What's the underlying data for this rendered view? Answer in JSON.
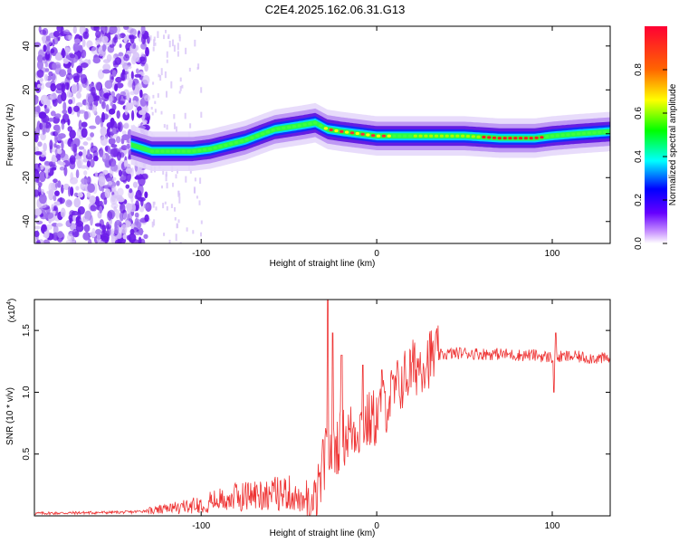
{
  "title": "C2E4.2025.162.06.31.G13",
  "chart_data": [
    {
      "type": "heatmap",
      "xlabel": "Height of straight line (km)",
      "ylabel": "Frequency (Hz)",
      "xlim": [
        -195,
        133
      ],
      "ylim": [
        -50,
        49
      ],
      "xticks": [
        -100,
        0,
        100
      ],
      "yticks": [
        -40,
        -20,
        0,
        20,
        40
      ],
      "colorbar": {
        "label": "Normalized spectral amplitude",
        "range": [
          0,
          1
        ],
        "ticks": [
          0.0,
          0.2,
          0.4,
          0.6,
          0.8
        ],
        "colors": [
          "#ffffff",
          "#cc99ff",
          "#6600ff",
          "#0000ff",
          "#00ffff",
          "#00ff00",
          "#ffff00",
          "#ff6600",
          "#ff0033"
        ]
      },
      "ridge": {
        "x": [
          -140,
          -128,
          -115,
          -105,
          -95,
          -85,
          -75,
          -65,
          -58,
          -50,
          -42,
          -35,
          -28,
          -20,
          -10,
          0,
          10,
          30,
          50,
          70,
          90,
          100,
          115,
          133
        ],
        "y": [
          -5,
          -8,
          -8,
          -8,
          -7,
          -5,
          -3,
          0,
          2,
          3,
          4,
          5,
          2,
          1,
          0,
          -1,
          -1,
          -1,
          -1,
          -2,
          -2,
          -1,
          0,
          1
        ]
      },
      "noise_until_x": -130
    },
    {
      "type": "line",
      "xlabel": "Height of straight line (km)",
      "ylabel": "SNR (10 * v/v)",
      "yscale_label": "(x10",
      "yscale_exp": "4",
      "xlim": [
        -195,
        133
      ],
      "ylim": [
        0,
        1.75
      ],
      "xticks": [
        -100,
        0,
        100
      ],
      "yticks": [
        0.5,
        1.0,
        1.5
      ],
      "ytick_labels": [
        "0.5",
        "1.0",
        "1.5"
      ],
      "color": "#ee3333",
      "envelope": {
        "x": [
          -195,
          -140,
          -125,
          -110,
          -100,
          -90,
          -80,
          -70,
          -60,
          -50,
          -45,
          -40,
          -36,
          -33,
          -30,
          -27,
          -24,
          -20,
          -15,
          -10,
          -5,
          0,
          5,
          10,
          15,
          20,
          25,
          30,
          40,
          50,
          60,
          70,
          80,
          90,
          100,
          110,
          120,
          133
        ],
        "y": [
          0.02,
          0.03,
          0.05,
          0.08,
          0.11,
          0.14,
          0.17,
          0.19,
          0.2,
          0.21,
          0.15,
          0.08,
          0.06,
          0.2,
          0.45,
          0.52,
          0.55,
          0.62,
          0.68,
          0.72,
          0.76,
          0.8,
          0.9,
          1.0,
          1.1,
          1.18,
          1.24,
          1.28,
          1.31,
          1.32,
          1.31,
          1.31,
          1.3,
          1.3,
          1.28,
          1.29,
          1.28,
          1.27
        ]
      },
      "spikes": [
        {
          "x": -28,
          "y": 1.75
        },
        {
          "x": -25,
          "y": 1.48
        },
        {
          "x": -20,
          "y": 1.3
        },
        {
          "x": -8,
          "y": 1.22
        },
        {
          "x": 3,
          "y": 1.18
        },
        {
          "x": 102,
          "y": 1.48
        },
        {
          "x": 101,
          "y": 1.0
        }
      ]
    }
  ]
}
